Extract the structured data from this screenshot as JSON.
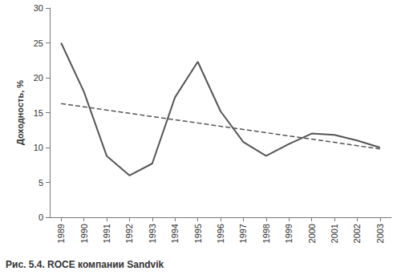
{
  "chart_data": {
    "type": "line",
    "title": "Рис. 5.4. ROCE компании Sandvik",
    "y_label": "Доходность, %",
    "categories": [
      "1989",
      "1990",
      "1991",
      "1992",
      "1993",
      "1994",
      "1995",
      "1996",
      "1997",
      "1998",
      "1999",
      "2000",
      "2001",
      "2002",
      "2003"
    ],
    "series": [
      {
        "color": "#555555",
        "line_style": "solid",
        "values": [
          25,
          18,
          8.8,
          6,
          7.7,
          17.2,
          22.3,
          15.2,
          10.8,
          8.8,
          10.5,
          12,
          11.8,
          11,
          10
        ]
      },
      {
        "color": "#555555",
        "line_style": "dashed",
        "values": [
          16.3,
          15.84,
          15.37,
          14.91,
          14.44,
          13.98,
          13.52,
          13.05,
          12.59,
          12.13,
          11.66,
          11.2,
          10.74,
          10.27,
          9.8
        ]
      }
    ],
    "ylim": [
      0,
      30
    ],
    "yticks": [
      0,
      5,
      10,
      15,
      20,
      25,
      30
    ],
    "grid": false
  }
}
